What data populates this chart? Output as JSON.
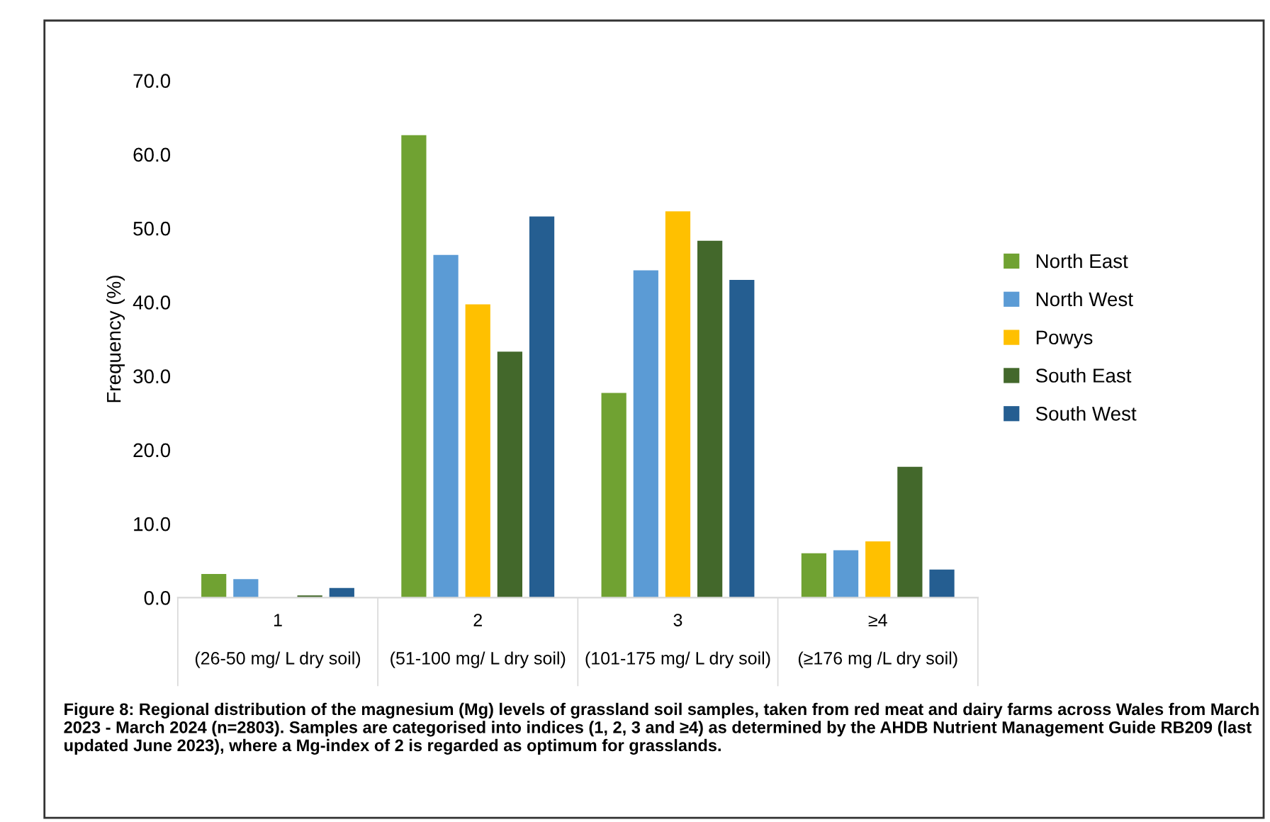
{
  "chart_data": {
    "type": "bar",
    "ylabel": "Frequency (%)",
    "categories": [
      "1\n\n(26-50 mg/ L dry soil)",
      "2\n\n(51-100 mg/ L dry soil)",
      "3\n\n(101-175 mg/ L dry soil)",
      "≥4\n\n(≥176 mg /L dry soil)"
    ],
    "series": [
      {
        "name": "North East",
        "color": "#70a232",
        "values": [
          3.2,
          62.6,
          27.7,
          6.0
        ]
      },
      {
        "name": "North West",
        "color": "#5b9bd5",
        "values": [
          2.5,
          46.4,
          44.3,
          6.4
        ]
      },
      {
        "name": "Powys",
        "color": "#ffc000",
        "values": [
          0.0,
          39.7,
          52.3,
          7.6
        ]
      },
      {
        "name": "South East",
        "color": "#43682b",
        "values": [
          0.3,
          33.3,
          48.3,
          17.7
        ]
      },
      {
        "name": "South West",
        "color": "#255e91",
        "values": [
          1.3,
          51.6,
          43.0,
          3.8
        ]
      }
    ],
    "ylim": [
      0,
      70
    ],
    "yticks": [
      {
        "value": 0,
        "label": "0.0"
      },
      {
        "value": 10,
        "label": "10.0"
      },
      {
        "value": 20,
        "label": "20.0"
      },
      {
        "value": 30,
        "label": "30.0"
      },
      {
        "value": 40,
        "label": "40.0"
      },
      {
        "value": 50,
        "label": "50.0"
      },
      {
        "value": 60,
        "label": "60.0"
      },
      {
        "value": 70,
        "label": "70.0"
      }
    ],
    "grid": false,
    "legend": "right",
    "annotations": [
      "Figure 8: Regional distribution of the magnesium (Mg) levels of grassland soil samples, taken from red meat and dairy farms across Wales from March 2023 - March 2024 (n=2803). Samples are categorised into indices (1, 2, 3 and ≥4) as determined by the AHDB Nutrient Management Guide RB209 (last updated June 2023), where a Mg-index of 2 is regarded as optimum for grasslands."
    ]
  }
}
